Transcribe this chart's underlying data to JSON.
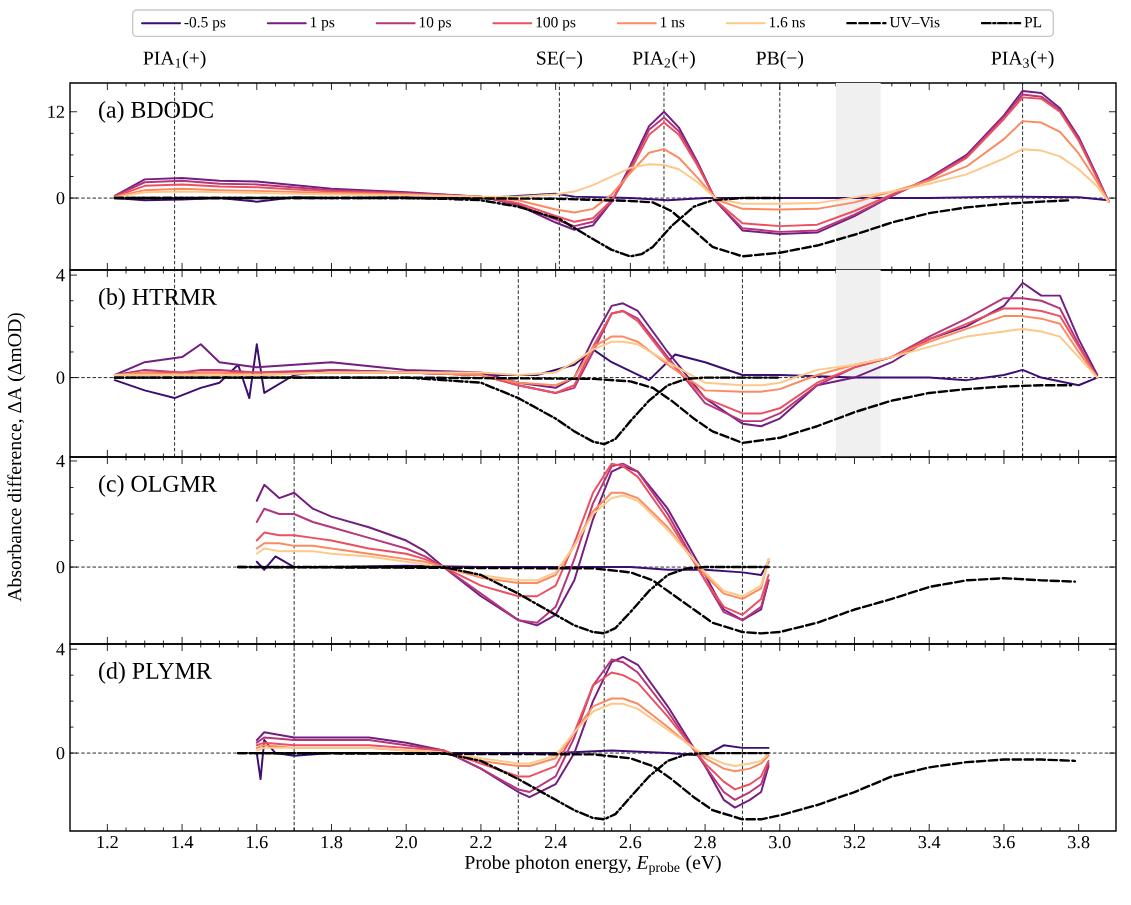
{
  "chart_data": [
    {
      "type": "line",
      "title": "(a) BDODC",
      "legend": "top",
      "tick_labels": "y",
      "xlim": [
        1.1,
        3.9
      ],
      "ylim": [
        -10,
        16
      ],
      "xticks": [
        1.2,
        1.4,
        1.6,
        1.8,
        2.0,
        2.2,
        2.4,
        2.6,
        2.8,
        3.0,
        3.2,
        3.4,
        3.6,
        3.8
      ],
      "yticks": [
        0,
        12
      ],
      "annotations": [
        "PIA$_{1}$(+)",
        "SE(−)",
        "PIA$_{2}$(+)",
        "PB(−)",
        "PIA$_{3}$(+)"
      ],
      "ref_lines": [
        {
          "axis": "y",
          "value": 0,
          "color": "#000000",
          "line_style": "dashed"
        },
        {
          "axis": "x",
          "value": 1.38,
          "color": "#000000",
          "line_style": "dashed"
        },
        {
          "axis": "x",
          "value": 2.41,
          "color": "#000000",
          "line_style": "dashed"
        },
        {
          "axis": "x",
          "value": 2.69,
          "color": "#000000",
          "line_style": "dashed"
        },
        {
          "axis": "x",
          "value": 3.0,
          "color": "#000000",
          "line_style": "dashed"
        },
        {
          "axis": "x",
          "value": 3.65,
          "color": "#000000",
          "line_style": "dashed"
        }
      ],
      "bands": [
        {
          "axis": "x",
          "from": 3.15,
          "to": 3.27,
          "color": "#f0f0f0"
        }
      ],
      "series": [
        {
          "name": "-0.5 ps",
          "color": "#3b0f70",
          "x": [
            1.22,
            1.3,
            1.4,
            1.5,
            1.6,
            1.7,
            1.8,
            2.0,
            2.2,
            2.4,
            2.45,
            2.6,
            2.7,
            2.8,
            3.0,
            3.2,
            3.4,
            3.6,
            3.8,
            3.88
          ],
          "values": [
            0,
            -0.3,
            -0.2,
            0,
            -0.5,
            0.1,
            0,
            0.1,
            0,
            0.6,
            0.2,
            0,
            -0.3,
            0,
            0,
            0,
            0,
            0.2,
            0.1,
            -0.3
          ]
        },
        {
          "name": "1 ps",
          "color": "#721f81",
          "x": [
            1.22,
            1.3,
            1.4,
            1.5,
            1.6,
            1.8,
            2.0,
            2.2,
            2.3,
            2.4,
            2.45,
            2.5,
            2.55,
            2.6,
            2.65,
            2.69,
            2.73,
            2.78,
            2.83,
            2.9,
            3.0,
            3.1,
            3.2,
            3.3,
            3.4,
            3.5,
            3.6,
            3.65,
            3.7,
            3.75,
            3.8,
            3.85,
            3.88
          ],
          "values": [
            0.3,
            2.6,
            2.8,
            2.4,
            2.3,
            1.3,
            0.8,
            0.2,
            -1.0,
            -3.4,
            -4.4,
            -3.8,
            -0.5,
            4.5,
            10.0,
            12.0,
            9.8,
            5.0,
            -0.5,
            -4.5,
            -5.0,
            -4.8,
            -2.5,
            0.3,
            2.8,
            6.0,
            11.5,
            14.9,
            14.6,
            12.5,
            8.5,
            3.0,
            -0.5
          ]
        },
        {
          "name": "10 ps",
          "color": "#b5367a",
          "x": [
            1.22,
            1.3,
            1.4,
            1.5,
            1.6,
            1.8,
            2.0,
            2.2,
            2.3,
            2.4,
            2.45,
            2.5,
            2.55,
            2.6,
            2.65,
            2.69,
            2.73,
            2.78,
            2.83,
            2.9,
            3.0,
            3.1,
            3.2,
            3.3,
            3.4,
            3.5,
            3.6,
            3.65,
            3.7,
            3.75,
            3.8,
            3.85,
            3.88
          ],
          "values": [
            0.3,
            2.2,
            2.4,
            2.0,
            1.9,
            1.1,
            0.7,
            0.2,
            -0.9,
            -3.0,
            -3.9,
            -3.3,
            -0.5,
            4.2,
            9.5,
            11.2,
            9.3,
            4.8,
            -0.5,
            -4.2,
            -4.7,
            -4.5,
            -2.3,
            0.3,
            2.7,
            5.8,
            11.3,
            14.4,
            14.1,
            12.2,
            8.3,
            2.8,
            -0.5
          ]
        },
        {
          "name": "100 ps",
          "color": "#ec5060",
          "x": [
            1.22,
            1.3,
            1.4,
            1.5,
            1.6,
            1.8,
            2.0,
            2.2,
            2.3,
            2.4,
            2.45,
            2.5,
            2.55,
            2.6,
            2.65,
            2.69,
            2.73,
            2.78,
            2.83,
            2.9,
            3.0,
            3.1,
            3.2,
            3.3,
            3.4,
            3.5,
            3.6,
            3.65,
            3.7,
            3.75,
            3.8,
            3.85,
            3.88
          ],
          "values": [
            0.2,
            1.7,
            1.9,
            1.6,
            1.5,
            0.9,
            0.6,
            0.2,
            -0.7,
            -2.5,
            -3.3,
            -2.8,
            -0.3,
            3.8,
            8.8,
            10.5,
            8.8,
            4.5,
            -0.4,
            -3.5,
            -3.9,
            -3.7,
            -1.8,
            0.5,
            2.6,
            5.6,
            11.0,
            14.0,
            13.8,
            12.0,
            8.0,
            2.7,
            -0.5
          ]
        },
        {
          "name": "1 ns",
          "color": "#fb8b5f",
          "x": [
            1.22,
            1.3,
            1.4,
            1.5,
            1.6,
            1.8,
            2.0,
            2.2,
            2.3,
            2.4,
            2.45,
            2.5,
            2.55,
            2.6,
            2.65,
            2.69,
            2.73,
            2.78,
            2.83,
            2.9,
            3.0,
            3.1,
            3.2,
            3.3,
            3.4,
            3.5,
            3.6,
            3.65,
            3.7,
            3.75,
            3.8,
            3.85,
            3.88
          ],
          "values": [
            0.2,
            1.1,
            1.3,
            1.1,
            1.0,
            0.7,
            0.5,
            0.2,
            -0.3,
            -1.6,
            -2.0,
            -1.5,
            0.5,
            3.5,
            6.3,
            6.8,
            5.6,
            2.8,
            -0.2,
            -1.5,
            -1.6,
            -1.5,
            -0.6,
            0.9,
            2.4,
            4.4,
            8.2,
            10.7,
            10.5,
            9.2,
            6.2,
            2.2,
            -0.5
          ]
        },
        {
          "name": "1.6 ns",
          "color": "#fdc98b",
          "x": [
            1.22,
            1.3,
            1.4,
            1.5,
            1.6,
            1.8,
            2.0,
            2.2,
            2.3,
            2.4,
            2.45,
            2.5,
            2.55,
            2.6,
            2.65,
            2.69,
            2.73,
            2.78,
            2.83,
            2.9,
            3.0,
            3.1,
            3.2,
            3.3,
            3.4,
            3.5,
            3.6,
            3.65,
            3.7,
            3.75,
            3.8,
            3.85,
            3.88
          ],
          "values": [
            0.1,
            0.8,
            0.9,
            0.8,
            0.7,
            0.5,
            0.4,
            0.2,
            0.2,
            0.5,
            0.9,
            1.8,
            3.0,
            4.2,
            4.7,
            4.6,
            4.0,
            2.2,
            -0.1,
            -0.8,
            -0.8,
            -0.7,
            0.1,
            0.9,
            2.0,
            3.3,
            5.5,
            6.8,
            6.6,
            5.8,
            4.0,
            1.6,
            -0.5
          ]
        },
        {
          "name": "UV–Vis",
          "color": "#000000",
          "line_style": "dashed",
          "x": [
            1.22,
            2.0,
            2.4,
            2.6,
            2.66,
            2.71,
            2.77,
            2.82,
            2.9,
            3.0,
            3.1,
            3.2,
            3.3,
            3.4,
            3.5,
            3.6,
            3.7,
            3.78
          ],
          "values": [
            0,
            0,
            -0.1,
            -0.4,
            -0.6,
            -1.8,
            -4.5,
            -6.8,
            -8.1,
            -7.6,
            -6.6,
            -5.1,
            -3.4,
            -2.1,
            -1.3,
            -0.8,
            -0.5,
            -0.3
          ]
        },
        {
          "name": "PL",
          "color": "#000000",
          "line_style": "dashdot",
          "x": [
            1.22,
            2.0,
            2.1,
            2.2,
            2.3,
            2.35,
            2.41,
            2.49,
            2.55,
            2.6,
            2.63,
            2.66,
            2.71,
            2.77,
            2.82,
            2.9,
            3.0
          ],
          "values": [
            0,
            0,
            -0.1,
            -0.3,
            -1.2,
            -2,
            -2.9,
            -5.4,
            -7.2,
            -8.1,
            -7.8,
            -6.8,
            -3.9,
            -1.2,
            -0.3,
            0,
            0
          ]
        }
      ]
    },
    {
      "type": "line",
      "title": "(b) HTRMR",
      "ylabel": "Absorbance difference, ΔA (ΔmOD)",
      "tick_labels": "y",
      "xlim": [
        1.1,
        3.9
      ],
      "ylim": [
        -3.1,
        4.2
      ],
      "xticks": [
        1.2,
        1.4,
        1.6,
        1.8,
        2.0,
        2.2,
        2.4,
        2.6,
        2.8,
        3.0,
        3.2,
        3.4,
        3.6,
        3.8
      ],
      "yticks": [
        0,
        4
      ],
      "ref_lines": [
        {
          "axis": "y",
          "value": 0,
          "color": "#000000",
          "line_style": "dashed"
        },
        {
          "axis": "x",
          "value": 1.38,
          "color": "#000000",
          "line_style": "dashed"
        },
        {
          "axis": "x",
          "value": 2.3,
          "color": "#000000",
          "line_style": "dashed"
        },
        {
          "axis": "x",
          "value": 2.53,
          "color": "#000000",
          "line_style": "dashed"
        },
        {
          "axis": "x",
          "value": 2.9,
          "color": "#000000",
          "line_style": "dashed"
        },
        {
          "axis": "x",
          "value": 3.65,
          "color": "#000000",
          "line_style": "dashed"
        }
      ],
      "bands": [
        {
          "axis": "x",
          "from": 3.15,
          "to": 3.27,
          "color": "#f0f0f0"
        }
      ],
      "series": [
        {
          "color": "#3b0f70",
          "x": [
            1.22,
            1.3,
            1.38,
            1.45,
            1.5,
            1.55,
            1.58,
            1.6,
            1.62,
            1.7,
            1.8,
            2.0,
            2.2,
            2.35,
            2.45,
            2.5,
            2.55,
            2.65,
            2.72,
            2.8,
            2.9,
            3.0,
            3.2,
            3.4,
            3.5,
            3.6,
            3.65,
            3.7,
            3.8,
            3.85
          ],
          "values": [
            -0.1,
            -0.5,
            -0.8,
            -0.4,
            -0.2,
            0.5,
            -0.8,
            1.3,
            -0.6,
            0.1,
            0.3,
            0.2,
            0.1,
            0.1,
            0.5,
            1.1,
            0.6,
            -0.1,
            0.9,
            0.6,
            0.1,
            0.1,
            0,
            0,
            -0.1,
            0.1,
            0.3,
            0,
            -0.3,
            0
          ]
        },
        {
          "color": "#721f81",
          "x": [
            1.22,
            1.3,
            1.4,
            1.45,
            1.5,
            1.6,
            1.8,
            2.0,
            2.2,
            2.3,
            2.4,
            2.45,
            2.5,
            2.55,
            2.58,
            2.62,
            2.7,
            2.8,
            2.9,
            2.95,
            3.0,
            3.1,
            3.2,
            3.3,
            3.4,
            3.5,
            3.6,
            3.65,
            3.7,
            3.75,
            3.8,
            3.85
          ],
          "values": [
            0.1,
            0.6,
            0.8,
            1.3,
            0.6,
            0.4,
            0.6,
            0.3,
            0.2,
            -0.2,
            -0.4,
            0,
            1.5,
            2.8,
            2.9,
            2.6,
            1.0,
            -0.8,
            -1.8,
            -1.9,
            -1.6,
            -0.3,
            0,
            0.6,
            1.5,
            2.0,
            2.8,
            3.7,
            3.2,
            3.2,
            1.5,
            0.1
          ]
        },
        {
          "color": "#b5367a",
          "x": [
            1.22,
            1.3,
            1.4,
            1.45,
            1.5,
            1.6,
            1.8,
            2.0,
            2.2,
            2.3,
            2.4,
            2.45,
            2.5,
            2.55,
            2.58,
            2.62,
            2.7,
            2.8,
            2.9,
            2.95,
            3.0,
            3.1,
            3.2,
            3.3,
            3.4,
            3.5,
            3.6,
            3.65,
            3.7,
            3.75,
            3.8,
            3.85
          ],
          "values": [
            0.1,
            0.3,
            0.2,
            0.3,
            0.3,
            0.2,
            0.3,
            0.2,
            0.1,
            -0.3,
            -0.6,
            -0.4,
            1.0,
            2.5,
            2.6,
            2.3,
            0.8,
            -1.0,
            -1.7,
            -1.7,
            -1.4,
            -0.3,
            0.4,
            0.8,
            1.6,
            2.3,
            3.1,
            3.1,
            3.0,
            2.7,
            1.3,
            0
          ]
        },
        {
          "color": "#ec5060",
          "x": [
            1.22,
            1.3,
            1.4,
            1.45,
            1.5,
            1.6,
            1.8,
            2.0,
            2.2,
            2.3,
            2.4,
            2.45,
            2.5,
            2.55,
            2.58,
            2.62,
            2.7,
            2.8,
            2.9,
            2.95,
            3.0,
            3.1,
            3.2,
            3.3,
            3.4,
            3.5,
            3.6,
            3.65,
            3.7,
            3.75,
            3.8,
            3.85
          ],
          "values": [
            0.1,
            0.2,
            0.2,
            0.2,
            0.2,
            0.2,
            0.2,
            0.2,
            0.1,
            -0.3,
            -0.6,
            -0.3,
            1.2,
            2.5,
            2.6,
            2.2,
            0.7,
            -0.8,
            -1.4,
            -1.4,
            -1.2,
            -0.2,
            0.4,
            0.8,
            1.5,
            2.1,
            2.7,
            2.7,
            2.6,
            2.4,
            1.2,
            0
          ]
        },
        {
          "color": "#fb8b5f",
          "x": [
            1.22,
            1.3,
            1.4,
            1.45,
            1.5,
            1.6,
            1.8,
            2.0,
            2.2,
            2.3,
            2.4,
            2.45,
            2.5,
            2.55,
            2.58,
            2.62,
            2.7,
            2.8,
            2.9,
            2.95,
            3.0,
            3.1,
            3.2,
            3.3,
            3.4,
            3.5,
            3.6,
            3.65,
            3.7,
            3.75,
            3.8,
            3.85
          ],
          "values": [
            0.1,
            0.2,
            0.1,
            0.2,
            0.2,
            0.1,
            0.2,
            0.2,
            0.1,
            -0.2,
            -0.3,
            0,
            1.2,
            1.6,
            1.6,
            1.4,
            0.5,
            -0.5,
            -0.55,
            -0.55,
            -0.45,
            0.1,
            0.5,
            0.8,
            1.4,
            1.9,
            2.4,
            2.4,
            2.3,
            2.1,
            1.0,
            0
          ]
        },
        {
          "color": "#fdc98b",
          "x": [
            1.22,
            1.3,
            1.4,
            1.45,
            1.5,
            1.6,
            1.8,
            2.0,
            2.2,
            2.3,
            2.4,
            2.45,
            2.5,
            2.55,
            2.58,
            2.62,
            2.7,
            2.8,
            2.9,
            2.95,
            3.0,
            3.1,
            3.2,
            3.3,
            3.4,
            3.5,
            3.6,
            3.65,
            3.7,
            3.75,
            3.8,
            3.85
          ],
          "values": [
            0.1,
            0.1,
            0.1,
            0.1,
            0.1,
            0.1,
            0.2,
            0.2,
            0.2,
            0.1,
            0.2,
            0.6,
            1.1,
            1.4,
            1.4,
            1.3,
            0.6,
            -0.2,
            -0.3,
            -0.3,
            -0.2,
            0.3,
            0.5,
            0.8,
            1.2,
            1.6,
            1.8,
            1.9,
            1.8,
            1.6,
            0.8,
            0
          ]
        },
        {
          "color": "#000000",
          "line_style": "dashed",
          "x": [
            1.22,
            2.0,
            2.5,
            2.6,
            2.66,
            2.71,
            2.77,
            2.82,
            2.9,
            3.0,
            3.1,
            3.2,
            3.3,
            3.4,
            3.5,
            3.6,
            3.7,
            3.78
          ],
          "values": [
            0,
            0,
            -0.05,
            -0.15,
            -0.4,
            -0.9,
            -1.6,
            -2.1,
            -2.55,
            -2.35,
            -1.9,
            -1.35,
            -0.9,
            -0.6,
            -0.45,
            -0.35,
            -0.3,
            -0.3
          ]
        },
        {
          "color": "#000000",
          "line_style": "dashdot",
          "x": [
            1.22,
            2.0,
            2.2,
            2.3,
            2.35,
            2.4,
            2.45,
            2.5,
            2.53,
            2.56,
            2.6,
            2.65,
            2.7,
            2.75,
            2.8,
            3.0
          ],
          "values": [
            0,
            0,
            -0.2,
            -0.8,
            -1.2,
            -1.6,
            -2.1,
            -2.5,
            -2.6,
            -2.4,
            -1.7,
            -0.9,
            -0.3,
            -0.05,
            0,
            0
          ]
        }
      ]
    },
    {
      "type": "line",
      "title": "(c) OLGMR",
      "tick_labels": "y",
      "xlim": [
        1.1,
        3.9
      ],
      "ylim": [
        -2.9,
        4.15
      ],
      "xticks": [
        1.2,
        1.4,
        1.6,
        1.8,
        2.0,
        2.2,
        2.4,
        2.6,
        2.8,
        3.0,
        3.2,
        3.4,
        3.6,
        3.8
      ],
      "yticks": [
        0,
        4
      ],
      "ref_lines": [
        {
          "axis": "y",
          "value": 0,
          "color": "#000000",
          "line_style": "dashed"
        },
        {
          "axis": "x",
          "value": 1.7,
          "color": "#000000",
          "line_style": "dashed"
        },
        {
          "axis": "x",
          "value": 2.3,
          "color": "#000000",
          "line_style": "dashed"
        },
        {
          "axis": "x",
          "value": 2.53,
          "color": "#000000",
          "line_style": "dashed"
        },
        {
          "axis": "x",
          "value": 2.9,
          "color": "#000000",
          "line_style": "dashed"
        }
      ],
      "series": [
        {
          "color": "#3b0f70",
          "x": [
            1.6,
            1.62,
            1.65,
            1.7,
            1.8,
            2.0,
            2.2,
            2.4,
            2.6,
            2.7,
            2.8,
            2.9,
            2.95,
            2.97
          ],
          "values": [
            0.2,
            -0.1,
            0.4,
            0,
            0,
            0.05,
            0,
            0,
            0,
            -0.1,
            -0.1,
            -0.2,
            -0.3,
            0.2
          ]
        },
        {
          "color": "#721f81",
          "x": [
            1.6,
            1.62,
            1.66,
            1.7,
            1.75,
            1.8,
            1.9,
            2.0,
            2.05,
            2.1,
            2.2,
            2.3,
            2.35,
            2.4,
            2.45,
            2.5,
            2.55,
            2.58,
            2.62,
            2.7,
            2.8,
            2.85,
            2.9,
            2.95,
            2.97
          ],
          "values": [
            2.5,
            3.1,
            2.6,
            2.8,
            2.2,
            1.9,
            1.5,
            1.0,
            0.6,
            0,
            -1.1,
            -2.0,
            -2.2,
            -1.8,
            -0.5,
            1.8,
            3.6,
            3.8,
            3.6,
            2.2,
            -0.3,
            -1.6,
            -2.0,
            -1.6,
            -0.5
          ]
        },
        {
          "color": "#b5367a",
          "x": [
            1.6,
            1.62,
            1.66,
            1.7,
            1.75,
            1.8,
            1.9,
            2.0,
            2.05,
            2.1,
            2.2,
            2.3,
            2.35,
            2.4,
            2.45,
            2.5,
            2.55,
            2.58,
            2.62,
            2.7,
            2.8,
            2.85,
            2.9,
            2.95,
            2.97
          ],
          "values": [
            1.7,
            2.2,
            2.0,
            2.0,
            1.7,
            1.5,
            1.1,
            0.7,
            0.4,
            0,
            -1.0,
            -2.0,
            -2.1,
            -1.5,
            0.3,
            2.4,
            3.8,
            3.9,
            3.6,
            2.0,
            -0.5,
            -1.7,
            -2.0,
            -1.5,
            -0.5
          ]
        },
        {
          "color": "#ec5060",
          "x": [
            1.6,
            1.62,
            1.66,
            1.7,
            1.75,
            1.8,
            1.9,
            2.0,
            2.05,
            2.1,
            2.2,
            2.3,
            2.35,
            2.4,
            2.45,
            2.5,
            2.55,
            2.58,
            2.62,
            2.7,
            2.8,
            2.85,
            2.9,
            2.95,
            2.97
          ],
          "values": [
            1.0,
            1.3,
            1.2,
            1.2,
            1.1,
            1.0,
            0.7,
            0.5,
            0.3,
            0,
            -0.7,
            -1.1,
            -1.1,
            -0.7,
            0.9,
            2.8,
            3.9,
            3.8,
            3.4,
            1.8,
            -0.5,
            -1.5,
            -1.8,
            -1.2,
            -0.3
          ]
        },
        {
          "color": "#fb8b5f",
          "x": [
            1.6,
            1.62,
            1.66,
            1.7,
            1.75,
            1.8,
            1.9,
            2.0,
            2.05,
            2.1,
            2.2,
            2.3,
            2.35,
            2.4,
            2.45,
            2.5,
            2.55,
            2.58,
            2.62,
            2.7,
            2.8,
            2.85,
            2.9,
            2.95,
            2.97
          ],
          "values": [
            0.7,
            0.9,
            0.9,
            0.8,
            0.8,
            0.7,
            0.5,
            0.3,
            0.2,
            0,
            -0.4,
            -0.6,
            -0.6,
            -0.3,
            0.8,
            2.1,
            2.8,
            2.8,
            2.6,
            1.5,
            -0.3,
            -1.0,
            -1.2,
            -0.8,
            0.3
          ]
        },
        {
          "color": "#fdc98b",
          "x": [
            1.6,
            1.62,
            1.66,
            1.7,
            1.75,
            1.8,
            1.9,
            2.0,
            2.05,
            2.1,
            2.2,
            2.3,
            2.35,
            2.4,
            2.45,
            2.5,
            2.55,
            2.58,
            2.62,
            2.7,
            2.8,
            2.85,
            2.9,
            2.95,
            2.97
          ],
          "values": [
            0.5,
            0.7,
            0.6,
            0.6,
            0.6,
            0.5,
            0.4,
            0.2,
            0.1,
            0,
            -0.3,
            -0.5,
            -0.5,
            -0.2,
            0.8,
            2.0,
            2.6,
            2.7,
            2.5,
            1.4,
            -0.2,
            -0.9,
            -1.1,
            -0.7,
            0.3
          ]
        },
        {
          "color": "#000000",
          "line_style": "dashed",
          "x": [
            1.55,
            2.5,
            2.6,
            2.66,
            2.71,
            2.77,
            2.82,
            2.9,
            2.95,
            3.0,
            3.1,
            3.2,
            3.3,
            3.4,
            3.5,
            3.6,
            3.7,
            3.79
          ],
          "values": [
            0,
            -0.05,
            -0.2,
            -0.5,
            -1.0,
            -1.6,
            -2.1,
            -2.45,
            -2.5,
            -2.45,
            -2.1,
            -1.6,
            -1.2,
            -0.75,
            -0.5,
            -0.42,
            -0.5,
            -0.55
          ]
        },
        {
          "color": "#000000",
          "line_style": "dashdot",
          "x": [
            1.55,
            2.1,
            2.2,
            2.3,
            2.35,
            2.4,
            2.45,
            2.5,
            2.53,
            2.56,
            2.6,
            2.65,
            2.7,
            2.75,
            2.8,
            2.97
          ],
          "values": [
            0,
            0,
            -0.3,
            -1.0,
            -1.4,
            -1.8,
            -2.2,
            -2.45,
            -2.5,
            -2.3,
            -1.7,
            -0.9,
            -0.3,
            -0.05,
            0,
            0
          ]
        }
      ]
    },
    {
      "type": "line",
      "title": "(d) PLYMR",
      "xlabel": "Probe photon energy, *E*$_{probe}$ (eV)",
      "xlim": [
        1.1,
        3.9
      ],
      "ylim": [
        -3.0,
        4.2
      ],
      "xticks": [
        1.2,
        1.4,
        1.6,
        1.8,
        {
          "value": 2.0,
          "label": "2.0"
        },
        2.2,
        2.4,
        2.6,
        2.8,
        {
          "value": 3.0,
          "label": "3.0"
        },
        3.2,
        3.4,
        3.6,
        3.8
      ],
      "yticks": [
        0,
        4
      ],
      "ref_lines": [
        {
          "axis": "y",
          "value": 0,
          "color": "#000000",
          "line_style": "dashed"
        },
        {
          "axis": "x",
          "value": 1.7,
          "color": "#000000",
          "line_style": "dashed"
        },
        {
          "axis": "x",
          "value": 2.3,
          "color": "#000000",
          "line_style": "dashed"
        },
        {
          "axis": "x",
          "value": 2.53,
          "color": "#000000",
          "line_style": "dashed"
        },
        {
          "axis": "x",
          "value": 2.9,
          "color": "#000000",
          "line_style": "dashed"
        }
      ],
      "series": [
        {
          "color": "#3b0f70",
          "x": [
            1.6,
            1.61,
            1.62,
            1.65,
            1.7,
            1.8,
            2.0,
            2.4,
            2.55,
            2.7,
            2.8,
            2.85,
            2.9,
            2.95,
            2.97
          ],
          "values": [
            0,
            -1.0,
            0.5,
            0,
            -0.1,
            0,
            0,
            0,
            0.1,
            0,
            -0.1,
            0.3,
            0.2,
            0.2,
            0.2
          ]
        },
        {
          "color": "#721f81",
          "x": [
            1.6,
            1.62,
            1.7,
            1.8,
            1.9,
            2.0,
            2.1,
            2.2,
            2.3,
            2.33,
            2.4,
            2.45,
            2.5,
            2.55,
            2.58,
            2.62,
            2.7,
            2.8,
            2.85,
            2.88,
            2.92,
            2.95,
            2.97
          ],
          "values": [
            0.5,
            0.8,
            0.6,
            0.6,
            0.6,
            0.4,
            0.1,
            -0.6,
            -1.5,
            -1.7,
            -1.2,
            0,
            2.0,
            3.5,
            3.7,
            3.4,
            1.8,
            -0.5,
            -1.8,
            -2.1,
            -1.8,
            -1.5,
            -0.5
          ]
        },
        {
          "color": "#b5367a",
          "x": [
            1.6,
            1.62,
            1.7,
            1.8,
            1.9,
            2.0,
            2.1,
            2.2,
            2.3,
            2.33,
            2.4,
            2.45,
            2.5,
            2.55,
            2.58,
            2.62,
            2.7,
            2.8,
            2.85,
            2.88,
            2.92,
            2.95,
            2.97
          ],
          "values": [
            0.4,
            0.6,
            0.5,
            0.5,
            0.5,
            0.3,
            0.1,
            -0.6,
            -1.4,
            -1.5,
            -0.9,
            0.6,
            2.6,
            3.6,
            3.5,
            3.1,
            1.6,
            -0.5,
            -1.5,
            -1.8,
            -1.5,
            -1.2,
            -0.4
          ]
        },
        {
          "color": "#ec5060",
          "x": [
            1.6,
            1.62,
            1.7,
            1.8,
            1.9,
            2.0,
            2.1,
            2.2,
            2.3,
            2.33,
            2.4,
            2.45,
            2.5,
            2.55,
            2.58,
            2.62,
            2.7,
            2.8,
            2.85,
            2.88,
            2.92,
            2.95,
            2.97
          ],
          "values": [
            0.3,
            0.4,
            0.3,
            0.3,
            0.3,
            0.2,
            0.1,
            -0.4,
            -0.9,
            -0.9,
            -0.5,
            0.8,
            2.6,
            3.1,
            3.0,
            2.7,
            1.4,
            -0.4,
            -1.1,
            -1.4,
            -1.2,
            -0.9,
            -0.3
          ]
        },
        {
          "color": "#fb8b5f",
          "x": [
            1.6,
            1.62,
            1.7,
            1.8,
            1.9,
            2.0,
            2.1,
            2.2,
            2.3,
            2.33,
            2.4,
            2.45,
            2.5,
            2.55,
            2.58,
            2.62,
            2.7,
            2.8,
            2.85,
            2.88,
            2.92,
            2.95,
            2.97
          ],
          "values": [
            0.2,
            0.3,
            0.2,
            0.2,
            0.2,
            0.1,
            0,
            -0.3,
            -0.5,
            -0.5,
            -0.2,
            0.8,
            1.8,
            2.1,
            2.1,
            1.9,
            1.0,
            -0.2,
            -0.6,
            -0.7,
            -0.6,
            -0.4,
            -0.1
          ]
        },
        {
          "color": "#fdc98b",
          "x": [
            1.6,
            1.62,
            1.7,
            1.8,
            1.9,
            2.0,
            2.1,
            2.2,
            2.3,
            2.33,
            2.4,
            2.45,
            2.5,
            2.55,
            2.58,
            2.62,
            2.7,
            2.8,
            2.85,
            2.88,
            2.92,
            2.95,
            2.97
          ],
          "values": [
            0.1,
            0.2,
            0.2,
            0.2,
            0.2,
            0.1,
            0,
            -0.2,
            -0.4,
            -0.4,
            -0.1,
            0.8,
            1.6,
            1.9,
            1.9,
            1.7,
            0.9,
            -0.1,
            -0.4,
            -0.5,
            -0.4,
            -0.3,
            0
          ]
        },
        {
          "color": "#000000",
          "line_style": "dashed",
          "x": [
            1.55,
            2.5,
            2.6,
            2.66,
            2.71,
            2.77,
            2.82,
            2.9,
            2.95,
            3.0,
            3.1,
            3.2,
            3.3,
            3.4,
            3.5,
            3.6,
            3.7,
            3.79
          ],
          "values": [
            0,
            -0.05,
            -0.2,
            -0.5,
            -1.0,
            -1.7,
            -2.2,
            -2.55,
            -2.55,
            -2.4,
            -2.0,
            -1.5,
            -0.9,
            -0.55,
            -0.35,
            -0.25,
            -0.25,
            -0.3
          ]
        },
        {
          "color": "#000000",
          "line_style": "dashdot",
          "x": [
            1.55,
            2.1,
            2.2,
            2.3,
            2.35,
            2.4,
            2.45,
            2.5,
            2.53,
            2.56,
            2.6,
            2.65,
            2.7,
            2.75,
            2.8,
            2.97
          ],
          "values": [
            0,
            0,
            -0.3,
            -1.0,
            -1.4,
            -1.8,
            -2.2,
            -2.5,
            -2.55,
            -2.35,
            -1.7,
            -0.9,
            -0.3,
            -0.05,
            0,
            0
          ]
        }
      ]
    }
  ]
}
